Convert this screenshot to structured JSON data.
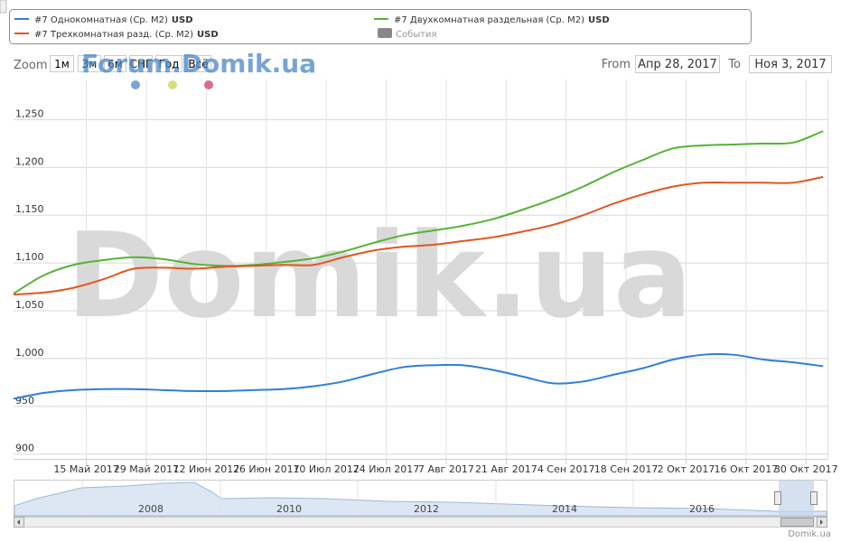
{
  "chart_data": {
    "type": "line",
    "unit": "USD",
    "events_label": "События",
    "events_color": "#888888",
    "zoom_label": "Zoom",
    "zoom_buttons": [
      "1м",
      "3м",
      "6м",
      "СНГ",
      "Год",
      "Всё"
    ],
    "from_label": "From",
    "from_value": "Апр 28, 2017",
    "to_label": "To",
    "to_value": "Ноя 3, 2017",
    "watermark": "Domik.ua",
    "forum_watermark": "Forum.Domik.ua",
    "credits": "Domik.ua",
    "navigator_labels": [
      "2008",
      "2010",
      "2012",
      "2014",
      "2016"
    ],
    "x": [
      "2017-04-28",
      "2017-05-05",
      "2017-05-12",
      "2017-05-19",
      "2017-05-26",
      "2017-06-02",
      "2017-06-09",
      "2017-06-16",
      "2017-06-23",
      "2017-06-30",
      "2017-07-07",
      "2017-07-14",
      "2017-07-21",
      "2017-07-28",
      "2017-08-04",
      "2017-08-11",
      "2017-08-18",
      "2017-08-25",
      "2017-09-01",
      "2017-09-08",
      "2017-09-15",
      "2017-09-22",
      "2017-09-29",
      "2017-10-06",
      "2017-10-13",
      "2017-10-20",
      "2017-10-27",
      "2017-11-03"
    ],
    "series": [
      {
        "name": "#7 Однокомнатная (Ср. M2)",
        "color": "#2f7ed8",
        "values": [
          958,
          964,
          967,
          968,
          968,
          967,
          966,
          966,
          967,
          968,
          971,
          976,
          984,
          991,
          993,
          993,
          988,
          981,
          974,
          976,
          983,
          990,
          999,
          1004,
          1004,
          999,
          996,
          992
        ]
      },
      {
        "name": "#7 Двухкомнатная раздельная (Ср. M2)",
        "color": "#52b433",
        "values": [
          1068,
          1087,
          1098,
          1103,
          1106,
          1104,
          1099,
          1097,
          1098,
          1101,
          1105,
          1112,
          1121,
          1129,
          1134,
          1139,
          1146,
          1156,
          1167,
          1180,
          1195,
          1208,
          1220,
          1223,
          1224,
          1225,
          1226,
          1238
        ]
      },
      {
        "name": "#7 Трехкомнатная разд. (Ср. M2)",
        "color": "#e2561f",
        "values": [
          1067,
          1069,
          1074,
          1083,
          1094,
          1095,
          1094,
          1096,
          1097,
          1098,
          1098,
          1106,
          1113,
          1117,
          1119,
          1123,
          1127,
          1133,
          1140,
          1150,
          1162,
          1172,
          1180,
          1184,
          1184,
          1184,
          1184,
          1190
        ]
      }
    ],
    "xlim": [
      "2017-04-28",
      "2017-11-04"
    ],
    "xticks": [
      {
        "value": "2017-05-15",
        "label": "15 Май 2017"
      },
      {
        "value": "2017-05-29",
        "label": "29 Май 2017"
      },
      {
        "value": "2017-06-12",
        "label": "12 Июн 2017"
      },
      {
        "value": "2017-06-26",
        "label": "26 Июн 2017"
      },
      {
        "value": "2017-07-10",
        "label": "10 Июл 2017"
      },
      {
        "value": "2017-07-24",
        "label": "24 Июл 2017"
      },
      {
        "value": "2017-08-07",
        "label": "7 Авг 2017"
      },
      {
        "value": "2017-08-21",
        "label": "21 Авг 2017"
      },
      {
        "value": "2017-09-04",
        "label": "4 Сен 2017"
      },
      {
        "value": "2017-09-18",
        "label": "18 Сен 2017"
      },
      {
        "value": "2017-10-02",
        "label": "2 Окт 2017"
      },
      {
        "value": "2017-10-16",
        "label": "16 Окт 2017"
      },
      {
        "value": "2017-10-30",
        "label": "30 Окт 2017"
      }
    ],
    "ylim": [
      895,
      1292
    ],
    "yticks": [
      900,
      950,
      {
        "value": 1000,
        "label": "1,000"
      },
      {
        "value": 1050,
        "label": "1,050"
      },
      {
        "value": 1100,
        "label": "1,100"
      },
      {
        "value": 1150,
        "label": "1,150"
      },
      {
        "value": 1200,
        "label": "1,200"
      },
      {
        "value": 1250,
        "label": "1,250"
      }
    ],
    "grid": true
  }
}
